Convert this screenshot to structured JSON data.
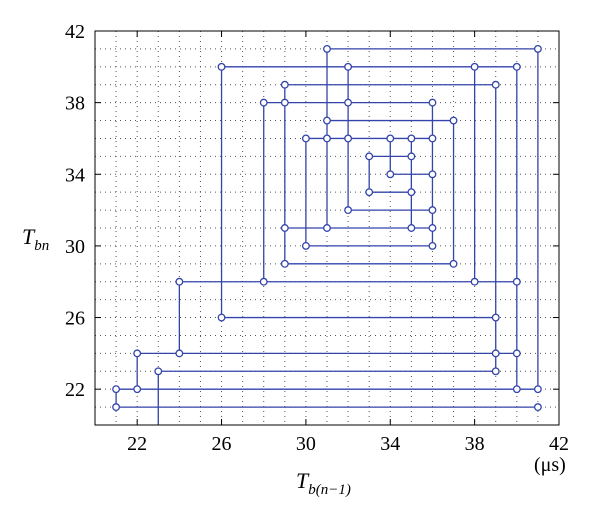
{
  "chart_data": {
    "type": "line",
    "title": "",
    "xlabel": "T",
    "xlabel_subscript": "b(n−1)",
    "ylabel": "T",
    "ylabel_subscript": "bn",
    "x_unit": "(μs)",
    "xlim": [
      20,
      42
    ],
    "ylim": [
      20,
      42
    ],
    "x_ticks": [
      22,
      26,
      30,
      34,
      38,
      42
    ],
    "y_ticks": [
      22,
      26,
      30,
      34,
      38,
      42
    ],
    "grid": "dotted, every 1 unit",
    "line_color": "#3344aa",
    "marker": "open circle",
    "series": [
      {
        "points": [
          [
            23,
            20
          ],
          [
            23,
            23
          ],
          [
            39,
            23
          ],
          [
            39,
            39
          ],
          [
            29,
            39
          ],
          [
            29,
            29
          ],
          [
            37,
            29
          ],
          [
            37,
            37
          ],
          [
            31,
            37
          ],
          [
            31,
            31
          ],
          [
            35,
            31
          ],
          [
            35,
            35
          ],
          [
            33,
            35
          ],
          [
            33,
            33
          ],
          [
            35,
            33
          ],
          [
            35,
            36
          ],
          [
            30,
            36
          ],
          [
            30,
            30
          ],
          [
            36,
            30
          ],
          [
            36,
            38
          ],
          [
            28,
            38
          ],
          [
            28,
            28
          ],
          [
            38,
            28
          ],
          [
            38,
            40
          ],
          [
            26,
            40
          ],
          [
            26,
            26
          ],
          [
            39,
            26
          ],
          [
            39,
            24
          ],
          [
            24,
            24
          ],
          [
            24,
            28
          ],
          [
            40,
            28
          ],
          [
            40,
            22
          ],
          [
            22,
            22
          ],
          [
            22,
            24
          ],
          [
            40,
            24
          ],
          [
            40,
            40
          ],
          [
            32,
            40
          ],
          [
            32,
            32
          ],
          [
            36,
            32
          ],
          [
            36,
            34
          ],
          [
            34,
            34
          ],
          [
            34,
            36
          ],
          [
            32,
            36
          ],
          [
            32,
            38
          ],
          [
            29,
            38
          ],
          [
            29,
            31
          ],
          [
            36,
            31
          ],
          [
            36,
            36
          ],
          [
            31,
            36
          ],
          [
            31,
            41
          ],
          [
            41,
            41
          ],
          [
            41,
            22
          ],
          [
            21,
            22
          ],
          [
            21,
            21
          ],
          [
            41,
            21
          ]
        ]
      }
    ]
  }
}
